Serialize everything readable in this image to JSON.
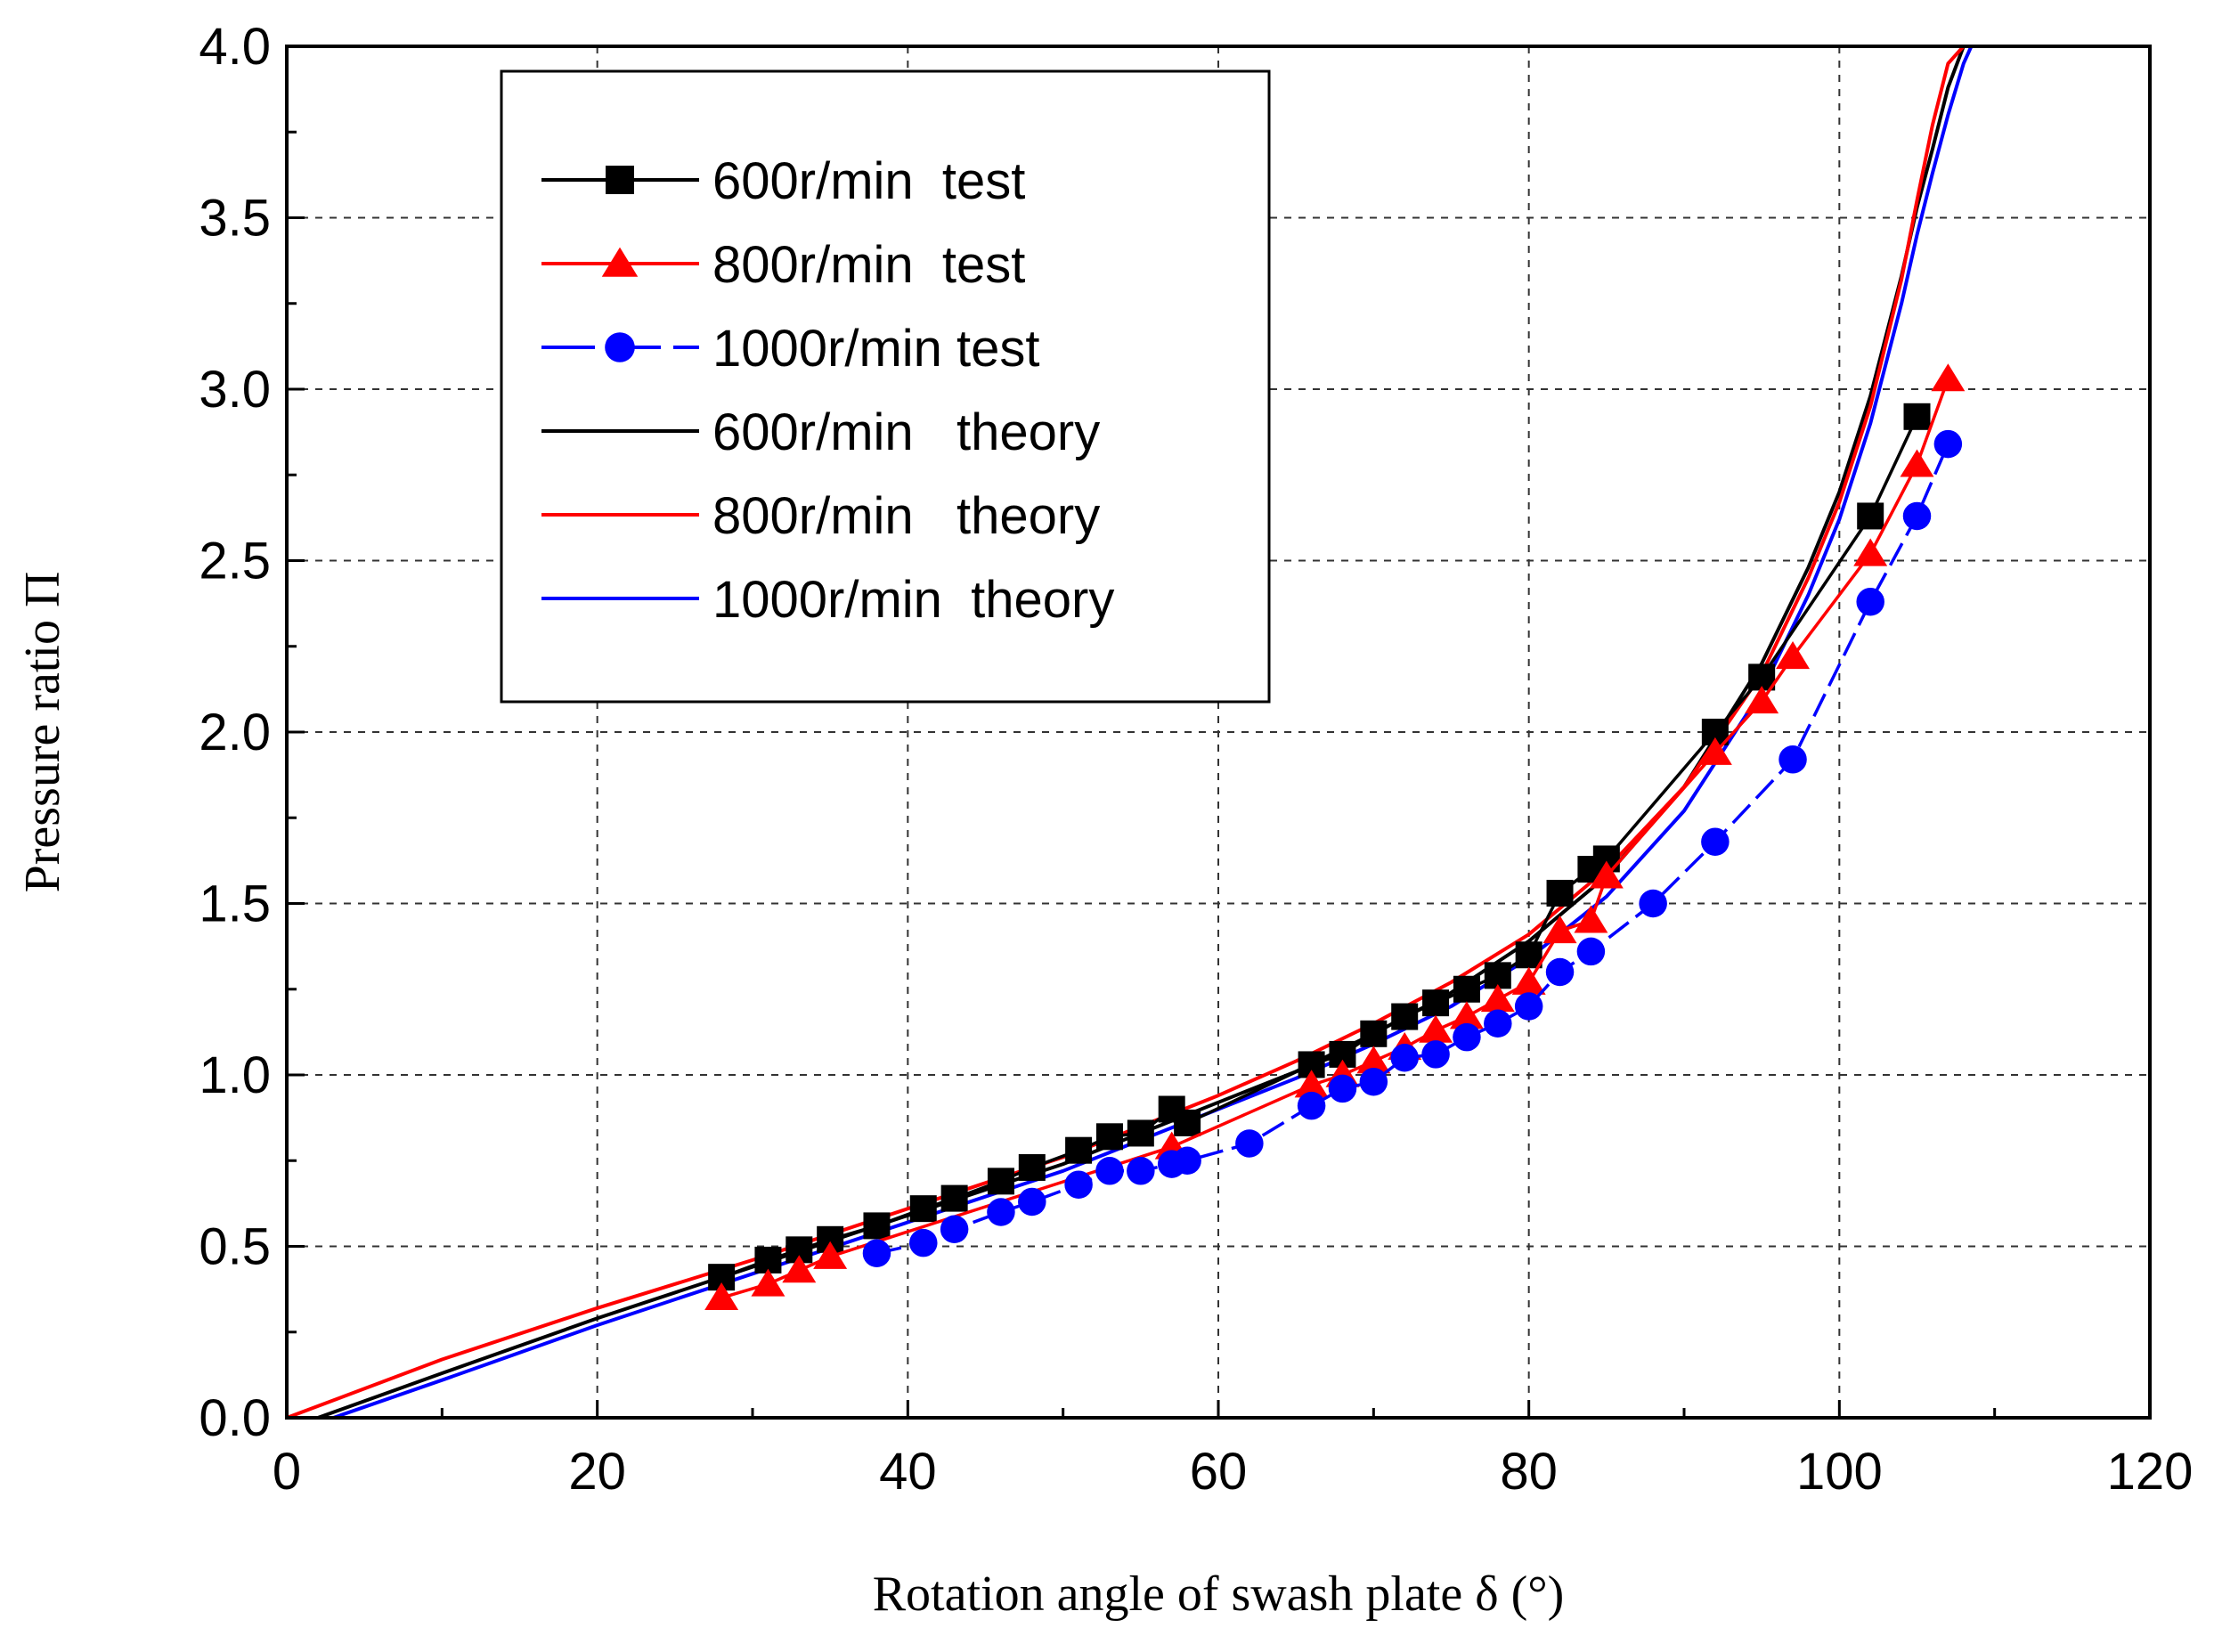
{
  "chart_data": {
    "type": "line",
    "xlabel": "Rotation angle of swash plate δ (°)",
    "ylabel": "Pressure ratio Π",
    "xlim": [
      0,
      120
    ],
    "ylim": [
      0,
      4.0
    ],
    "x_ticks": [
      "0",
      "20",
      "40",
      "60",
      "80",
      "100",
      "120"
    ],
    "y_ticks": [
      "0.0",
      "0.5",
      "1.0",
      "1.5",
      "2.0",
      "2.5",
      "3.0",
      "3.5",
      "4.0"
    ],
    "grid": true,
    "legend_position": "top-left",
    "series": [
      {
        "name": "600r/min  test",
        "color": "#000000",
        "marker": "square",
        "line": "solid",
        "x": [
          28,
          31,
          33,
          35,
          38,
          41,
          43,
          46,
          48,
          51,
          53,
          55,
          57,
          58,
          66,
          68,
          70,
          72,
          74,
          76,
          78,
          80,
          82,
          84,
          85,
          92,
          95,
          102,
          105
        ],
        "y": [
          0.41,
          0.46,
          0.49,
          0.52,
          0.56,
          0.61,
          0.64,
          0.69,
          0.73,
          0.78,
          0.82,
          0.83,
          0.9,
          0.86,
          1.03,
          1.06,
          1.12,
          1.17,
          1.21,
          1.25,
          1.29,
          1.35,
          1.53,
          1.6,
          1.63,
          2.0,
          2.16,
          2.63,
          2.92
        ]
      },
      {
        "name": "800r/min  test",
        "color": "#ff0000",
        "marker": "triangle",
        "line": "solid",
        "x": [
          28,
          31,
          33,
          35,
          57,
          66,
          68,
          70,
          72,
          74,
          76,
          78,
          80,
          82,
          84,
          85,
          92,
          95,
          97,
          102,
          105,
          107
        ],
        "y": [
          0.35,
          0.39,
          0.43,
          0.47,
          0.79,
          0.97,
          1.0,
          1.04,
          1.08,
          1.13,
          1.17,
          1.22,
          1.27,
          1.42,
          1.45,
          1.58,
          1.94,
          2.09,
          2.22,
          2.52,
          2.78,
          3.03
        ]
      },
      {
        "name": "1000r/min test",
        "color": "#0000ff",
        "marker": "circle",
        "line": "dash",
        "x": [
          38,
          41,
          43,
          46,
          48,
          51,
          53,
          55,
          57,
          58,
          62,
          66,
          68,
          70,
          72,
          74,
          76,
          78,
          80,
          82,
          84,
          88,
          92,
          97,
          102,
          105,
          107
        ],
        "y": [
          0.48,
          0.51,
          0.55,
          0.6,
          0.63,
          0.68,
          0.72,
          0.72,
          0.74,
          0.75,
          0.8,
          0.91,
          0.96,
          0.98,
          1.05,
          1.06,
          1.11,
          1.15,
          1.2,
          1.3,
          1.36,
          1.5,
          1.68,
          1.92,
          2.38,
          2.63,
          2.84
        ]
      },
      {
        "name": "600r/min   theory",
        "color": "#000000",
        "marker": "none",
        "line": "solid",
        "x": [
          2,
          10,
          20,
          30,
          40,
          50,
          60,
          65,
          70,
          75,
          80,
          85,
          90,
          95,
          98,
          100,
          102,
          104,
          105,
          106,
          107,
          108
        ],
        "y": [
          0.0,
          0.13,
          0.29,
          0.44,
          0.59,
          0.74,
          0.92,
          1.01,
          1.12,
          1.24,
          1.39,
          1.58,
          1.84,
          2.2,
          2.48,
          2.7,
          2.98,
          3.33,
          3.53,
          3.7,
          3.88,
          4.0
        ]
      },
      {
        "name": "800r/min   theory",
        "color": "#ff0000",
        "marker": "none",
        "line": "solid",
        "x": [
          0,
          10,
          20,
          30,
          40,
          50,
          60,
          65,
          70,
          75,
          80,
          85,
          90,
          95,
          98,
          100,
          102,
          104,
          105,
          106,
          107,
          108
        ],
        "y": [
          0.0,
          0.17,
          0.32,
          0.46,
          0.61,
          0.76,
          0.94,
          1.04,
          1.15,
          1.27,
          1.41,
          1.6,
          1.84,
          2.17,
          2.45,
          2.67,
          2.95,
          3.32,
          3.55,
          3.77,
          3.95,
          4.0
        ]
      },
      {
        "name": "1000r/min  theory",
        "color": "#0000ff",
        "marker": "none",
        "line": "solid",
        "x": [
          3,
          10,
          20,
          30,
          40,
          50,
          60,
          65,
          70,
          75,
          80,
          85,
          90,
          95,
          98,
          100,
          102,
          104,
          105,
          106,
          107,
          108,
          108.5
        ],
        "y": [
          0.0,
          0.11,
          0.27,
          0.42,
          0.57,
          0.72,
          0.9,
          0.99,
          1.09,
          1.2,
          1.34,
          1.52,
          1.77,
          2.12,
          2.4,
          2.62,
          2.9,
          3.25,
          3.45,
          3.63,
          3.8,
          3.95,
          4.0
        ]
      }
    ]
  }
}
